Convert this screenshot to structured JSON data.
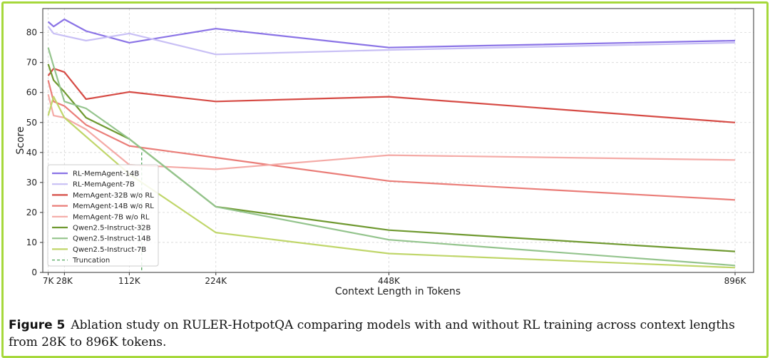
{
  "caption": {
    "label": "Figure 5",
    "text": "Ablation study on RULER-HotpotQA comparing models with and without RL training across context lengths from 28K to 896K tokens."
  },
  "chart_data": {
    "type": "line",
    "title": "",
    "xlabel": "Context Length in Tokens",
    "ylabel": "Score",
    "xlim": [
      0,
      920
    ],
    "ylim": [
      0,
      88
    ],
    "grid": true,
    "legend_position": "lower-left",
    "xticks": [
      {
        "value": 7,
        "label": "7K"
      },
      {
        "value": 28,
        "label": "28K"
      },
      {
        "value": 112,
        "label": "112K"
      },
      {
        "value": 224,
        "label": "224K"
      },
      {
        "value": 448,
        "label": "448K"
      },
      {
        "value": 896,
        "label": "896K"
      }
    ],
    "yticks": [
      0,
      10,
      20,
      30,
      40,
      50,
      60,
      70,
      80
    ],
    "series": [
      {
        "name": "RL-MemAgent-14B",
        "color": "#8a73e6",
        "x": [
          7,
          14,
          28,
          56,
          112,
          224,
          448,
          896
        ],
        "values": [
          83.6,
          82.0,
          84.4,
          80.5,
          76.6,
          81.3,
          75.0,
          77.3
        ]
      },
      {
        "name": "RL-MemAgent-7B",
        "color": "#c8bff5",
        "x": [
          7,
          14,
          28,
          56,
          112,
          224,
          448,
          896
        ],
        "values": [
          82.0,
          79.7,
          78.9,
          77.3,
          79.7,
          72.7,
          74.2,
          76.6
        ]
      },
      {
        "name": "MemAgent-32B w/o RL",
        "color": "#d64b45",
        "x": [
          7,
          14,
          28,
          56,
          112,
          224,
          448,
          896
        ],
        "values": [
          65.6,
          68.0,
          66.8,
          57.8,
          60.2,
          57.0,
          58.6,
          50.0
        ]
      },
      {
        "name": "MemAgent-14B w/o RL",
        "color": "#ea7d78",
        "x": [
          7,
          14,
          28,
          56,
          112,
          224,
          448,
          896
        ],
        "values": [
          64.1,
          57.0,
          55.5,
          49.2,
          42.2,
          38.3,
          30.5,
          24.2
        ]
      },
      {
        "name": "MemAgent-7B w/o RL",
        "color": "#f4aaa6",
        "x": [
          7,
          14,
          28,
          56,
          112,
          224,
          448,
          896
        ],
        "values": [
          59.4,
          52.3,
          51.6,
          47.7,
          35.9,
          34.4,
          39.1,
          37.5
        ]
      },
      {
        "name": "Qwen2.5-Instruct-32B",
        "color": "#6f9930",
        "x": [
          7,
          14,
          28,
          56,
          112,
          224,
          448,
          896
        ],
        "values": [
          69.5,
          64.1,
          60.2,
          51.6,
          44.5,
          21.9,
          14.1,
          7.0
        ]
      },
      {
        "name": "Qwen2.5-Instruct-14B",
        "color": "#94c48d",
        "x": [
          7,
          14,
          28,
          56,
          112,
          224,
          448,
          896
        ],
        "values": [
          75.0,
          68.8,
          57.0,
          54.7,
          44.5,
          21.9,
          10.9,
          2.3
        ]
      },
      {
        "name": "Qwen2.5-Instruct-7B",
        "color": "#c0d66a",
        "x": [
          7,
          14,
          28,
          56,
          112,
          224,
          448,
          896
        ],
        "values": [
          52.3,
          58.6,
          51.6,
          45.3,
          32.8,
          13.3,
          6.3,
          1.6
        ]
      }
    ],
    "truncation": {
      "name": "Truncation",
      "x": 128,
      "color": "#4fa65a"
    }
  }
}
